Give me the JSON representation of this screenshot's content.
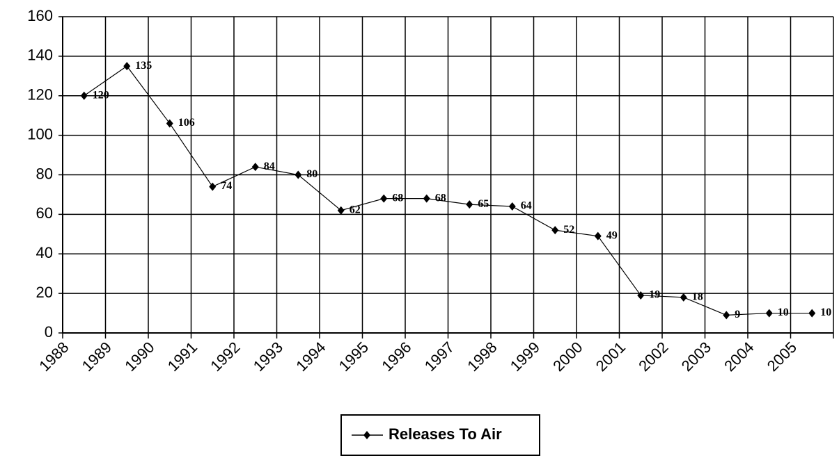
{
  "chart_data": {
    "type": "line",
    "categories": [
      "1988",
      "1989",
      "1990",
      "1991",
      "1992",
      "1993",
      "1994",
      "1995",
      "1996",
      "1997",
      "1998",
      "1999",
      "2000",
      "2001",
      "2002",
      "2003",
      "2004",
      "2005"
    ],
    "series": [
      {
        "name": "Releases To Air",
        "color": "#000000",
        "values": [
          120,
          135,
          106,
          74,
          84,
          80,
          62,
          68,
          68,
          65,
          64,
          52,
          49,
          19,
          18,
          9,
          10,
          10
        ]
      }
    ],
    "ylim": [
      0,
      160
    ],
    "yticks": [
      0,
      20,
      40,
      60,
      80,
      100,
      120,
      140,
      160
    ],
    "grid": true,
    "legend": "bottom",
    "data_labels": true
  }
}
